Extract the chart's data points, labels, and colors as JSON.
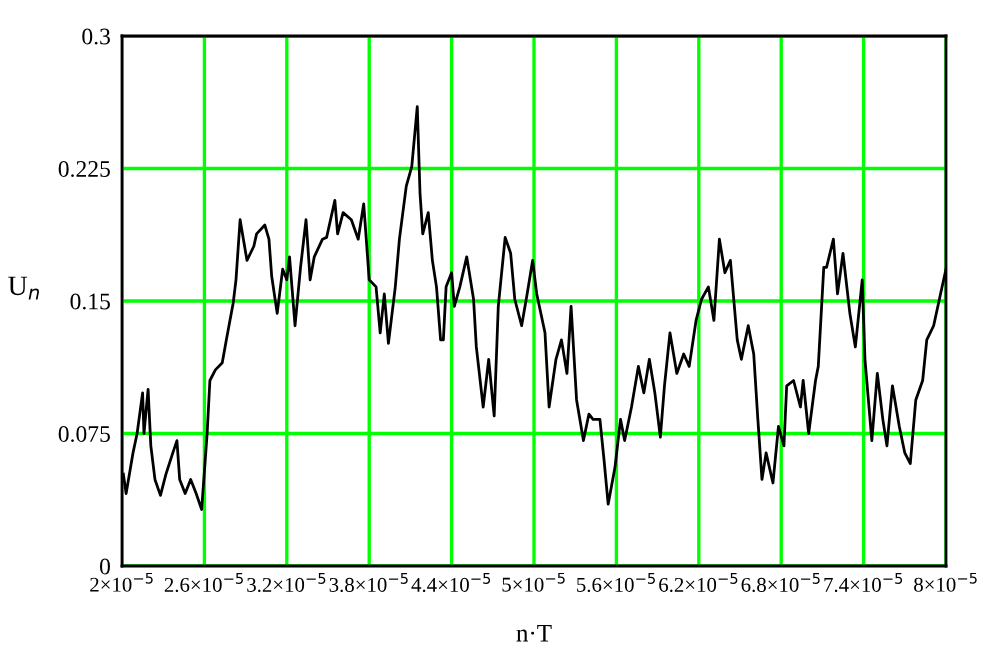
{
  "chart_data": {
    "type": "line",
    "xlabel": "n·T",
    "ylabel": "U$_{n}$",
    "xlim": [
      2e-05,
      8e-05
    ],
    "ylim": [
      0,
      0.3
    ],
    "xticks": [
      {
        "value": 2e-05,
        "label": "2×10$^{−5}$"
      },
      {
        "value": 2.6e-05,
        "label": "2.6×10$^{−5}$"
      },
      {
        "value": 3.2e-05,
        "label": "3.2×10$^{−5}$"
      },
      {
        "value": 3.8e-05,
        "label": "3.8×10$^{−5}$"
      },
      {
        "value": 4.4e-05,
        "label": "4.4×10$^{−5}$"
      },
      {
        "value": 5e-05,
        "label": "5×10$^{−5}$"
      },
      {
        "value": 5.6e-05,
        "label": "5.6×10$^{−5}$"
      },
      {
        "value": 6.2e-05,
        "label": "6.2×10$^{−5}$"
      },
      {
        "value": 6.8e-05,
        "label": "6.8×10$^{−5}$"
      },
      {
        "value": 7.4e-05,
        "label": "7.4×10$^{−5}$"
      },
      {
        "value": 8e-05,
        "label": "8×10$^{−5}$"
      }
    ],
    "yticks": [
      0,
      0.075,
      0.15,
      0.225,
      0.3
    ],
    "grid": true,
    "marker": "none",
    "line_style": "solid",
    "series": [
      {
        "color": "#000000",
        "x": [
          2.01e-05,
          2.03e-05,
          2.08e-05,
          2.11e-05,
          2.15e-05,
          2.16e-05,
          2.19e-05,
          2.21e-05,
          2.24e-05,
          2.28e-05,
          2.32e-05,
          2.37e-05,
          2.4e-05,
          2.42e-05,
          2.46e-05,
          2.5e-05,
          2.54e-05,
          2.58e-05,
          2.62e-05,
          2.64e-05,
          2.68e-05,
          2.73e-05,
          2.76e-05,
          2.81e-05,
          2.83e-05,
          2.86e-05,
          2.91e-05,
          2.96e-05,
          2.98e-05,
          3.04e-05,
          3.07e-05,
          3.09e-05,
          3.13e-05,
          3.17e-05,
          3.2e-05,
          3.22e-05,
          3.26e-05,
          3.3e-05,
          3.34e-05,
          3.37e-05,
          3.4e-05,
          3.46e-05,
          3.49e-05,
          3.55e-05,
          3.57e-05,
          3.61e-05,
          3.67e-05,
          3.72e-05,
          3.76e-05,
          3.8e-05,
          3.85e-05,
          3.88e-05,
          3.91e-05,
          3.94e-05,
          3.99e-05,
          4.02e-05,
          4.07e-05,
          4.11e-05,
          4.15e-05,
          4.17e-05,
          4.19e-05,
          4.23e-05,
          4.26e-05,
          4.29e-05,
          4.32e-05,
          4.34e-05,
          4.36e-05,
          4.4e-05,
          4.42e-05,
          4.46e-05,
          4.51e-05,
          4.56e-05,
          4.58e-05,
          4.63e-05,
          4.67e-05,
          4.71e-05,
          4.74e-05,
          4.79e-05,
          4.83e-05,
          4.86e-05,
          4.91e-05,
          4.95e-05,
          4.99e-05,
          5.02e-05,
          5.08e-05,
          5.11e-05,
          5.16e-05,
          5.2e-05,
          5.24e-05,
          5.27e-05,
          5.31e-05,
          5.36e-05,
          5.4e-05,
          5.43e-05,
          5.48e-05,
          5.51e-05,
          5.54e-05,
          5.59e-05,
          5.63e-05,
          5.66e-05,
          5.71e-05,
          5.76e-05,
          5.8e-05,
          5.84e-05,
          5.88e-05,
          5.92e-05,
          5.95e-05,
          5.99e-05,
          6.04e-05,
          6.09e-05,
          6.13e-05,
          6.18e-05,
          6.22e-05,
          6.27e-05,
          6.31e-05,
          6.35e-05,
          6.39e-05,
          6.43e-05,
          6.48e-05,
          6.51e-05,
          6.56e-05,
          6.6e-05,
          6.63e-05,
          6.66e-05,
          6.69e-05,
          6.74e-05,
          6.78e-05,
          6.82e-05,
          6.84e-05,
          6.89e-05,
          6.94e-05,
          6.96e-05,
          7e-05,
          7.05e-05,
          7.07e-05,
          7.11e-05,
          7.13e-05,
          7.18e-05,
          7.21e-05,
          7.25e-05,
          7.3e-05,
          7.34e-05,
          7.39e-05,
          7.41e-05,
          7.46e-05,
          7.5e-05,
          7.54e-05,
          7.57e-05,
          7.61e-05,
          7.66e-05,
          7.7e-05,
          7.74e-05,
          7.78e-05,
          7.83e-05,
          7.86e-05,
          7.91e-05,
          7.96e-05,
          8e-05
        ],
        "values": [
          0.052,
          0.041,
          0.064,
          0.075,
          0.098,
          0.075,
          0.1,
          0.068,
          0.049,
          0.04,
          0.052,
          0.064,
          0.071,
          0.049,
          0.041,
          0.049,
          0.041,
          0.032,
          0.075,
          0.105,
          0.111,
          0.115,
          0.128,
          0.149,
          0.162,
          0.196,
          0.173,
          0.181,
          0.188,
          0.193,
          0.185,
          0.164,
          0.143,
          0.168,
          0.162,
          0.175,
          0.136,
          0.169,
          0.196,
          0.162,
          0.175,
          0.185,
          0.186,
          0.207,
          0.188,
          0.2,
          0.196,
          0.185,
          0.205,
          0.162,
          0.158,
          0.132,
          0.154,
          0.126,
          0.158,
          0.185,
          0.215,
          0.226,
          0.26,
          0.211,
          0.188,
          0.2,
          0.173,
          0.158,
          0.128,
          0.128,
          0.158,
          0.166,
          0.147,
          0.158,
          0.175,
          0.151,
          0.124,
          0.09,
          0.117,
          0.085,
          0.147,
          0.186,
          0.177,
          0.151,
          0.136,
          0.154,
          0.173,
          0.154,
          0.132,
          0.09,
          0.117,
          0.128,
          0.109,
          0.147,
          0.094,
          0.071,
          0.086,
          0.083,
          0.083,
          0.06,
          0.035,
          0.056,
          0.083,
          0.071,
          0.09,
          0.113,
          0.098,
          0.117,
          0.098,
          0.073,
          0.102,
          0.132,
          0.109,
          0.12,
          0.113,
          0.139,
          0.151,
          0.158,
          0.139,
          0.185,
          0.166,
          0.173,
          0.128,
          0.117,
          0.136,
          0.12,
          0.083,
          0.049,
          0.064,
          0.047,
          0.079,
          0.068,
          0.102,
          0.105,
          0.09,
          0.105,
          0.075,
          0.105,
          0.113,
          0.169,
          0.169,
          0.185,
          0.154,
          0.177,
          0.143,
          0.124,
          0.162,
          0.117,
          0.071,
          0.109,
          0.083,
          0.068,
          0.102,
          0.079,
          0.064,
          0.058,
          0.094,
          0.105,
          0.128,
          0.136,
          0.154,
          0.168
        ]
      }
    ]
  }
}
